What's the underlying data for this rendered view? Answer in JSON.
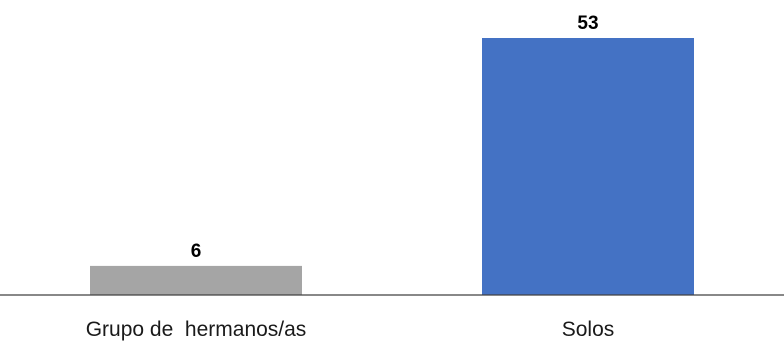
{
  "chart_data": {
    "type": "bar",
    "categories": [
      "Grupo de  hermanos/as",
      "Solos"
    ],
    "values": [
      6,
      53
    ],
    "data_labels": [
      "6",
      "53"
    ],
    "colors": [
      "#A5A5A5",
      "#4472C4"
    ],
    "axis_color": "#404040",
    "ylim": [
      0,
      53
    ],
    "grid": false,
    "legend": "none",
    "title": "",
    "xlabel": "",
    "ylabel": ""
  }
}
